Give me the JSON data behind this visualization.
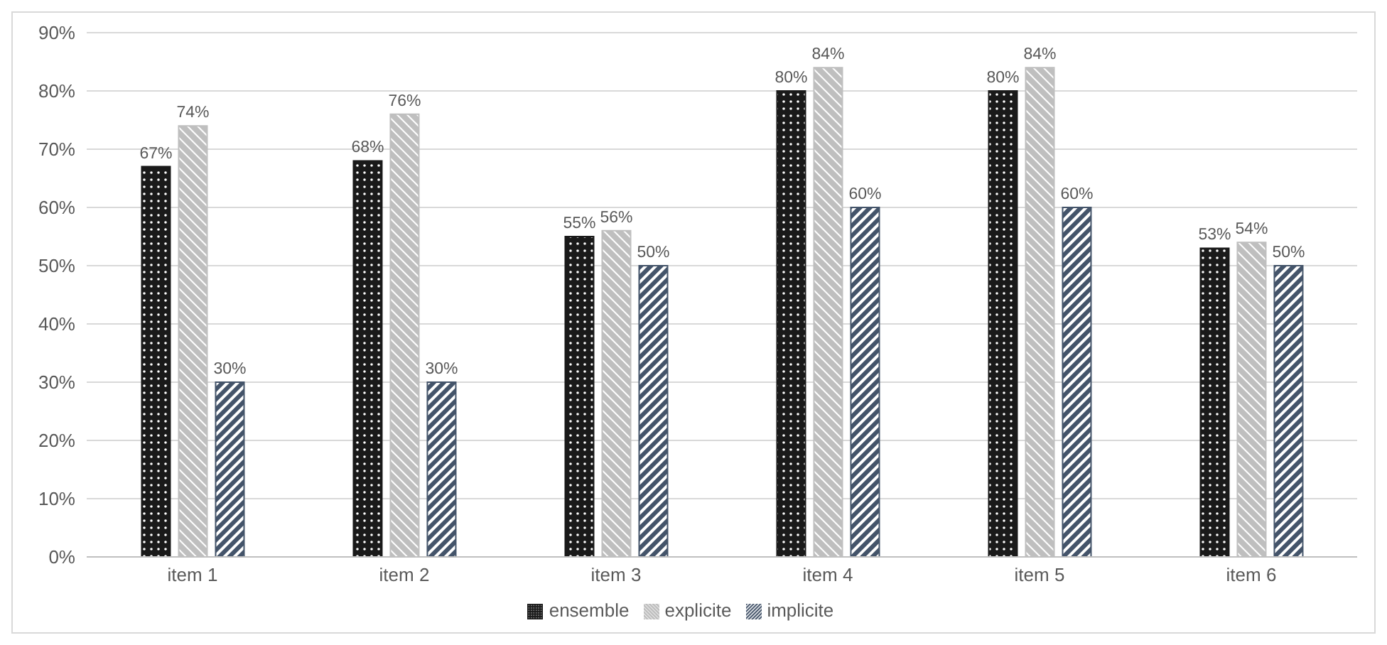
{
  "chart_data": {
    "type": "bar",
    "categories": [
      "item 1",
      "item 2",
      "item 3",
      "item 4",
      "item 5",
      "item 6"
    ],
    "series": [
      {
        "name": "ensemble",
        "color": "#1a1a1a",
        "values": [
          67,
          68,
          55,
          80,
          80,
          53
        ],
        "value_labels": [
          "67%",
          "68%",
          "55%",
          "80%",
          "80%",
          "53%"
        ]
      },
      {
        "name": "explicite",
        "color": "#bfbfbf",
        "values": [
          74,
          76,
          56,
          84,
          84,
          54
        ],
        "value_labels": [
          "74%",
          "76%",
          "56%",
          "84%",
          "84%",
          "54%"
        ]
      },
      {
        "name": "implicite",
        "color": "#44546a",
        "values": [
          30,
          30,
          50,
          60,
          60,
          50
        ],
        "value_labels": [
          "30%",
          "30%",
          "50%",
          "60%",
          "60%",
          "50%"
        ]
      }
    ],
    "ylim": [
      0,
      90
    ],
    "yticks": [
      {
        "value": 0,
        "label": "0%"
      },
      {
        "value": 10,
        "label": "10%"
      },
      {
        "value": 20,
        "label": "20%"
      },
      {
        "value": 30,
        "label": "30%"
      },
      {
        "value": 40,
        "label": "40%"
      },
      {
        "value": 50,
        "label": "50%"
      },
      {
        "value": 60,
        "label": "60%"
      },
      {
        "value": 70,
        "label": "70%"
      },
      {
        "value": 80,
        "label": "80%"
      },
      {
        "value": 90,
        "label": "90%"
      }
    ],
    "grid": "y",
    "legend": "bottom"
  }
}
